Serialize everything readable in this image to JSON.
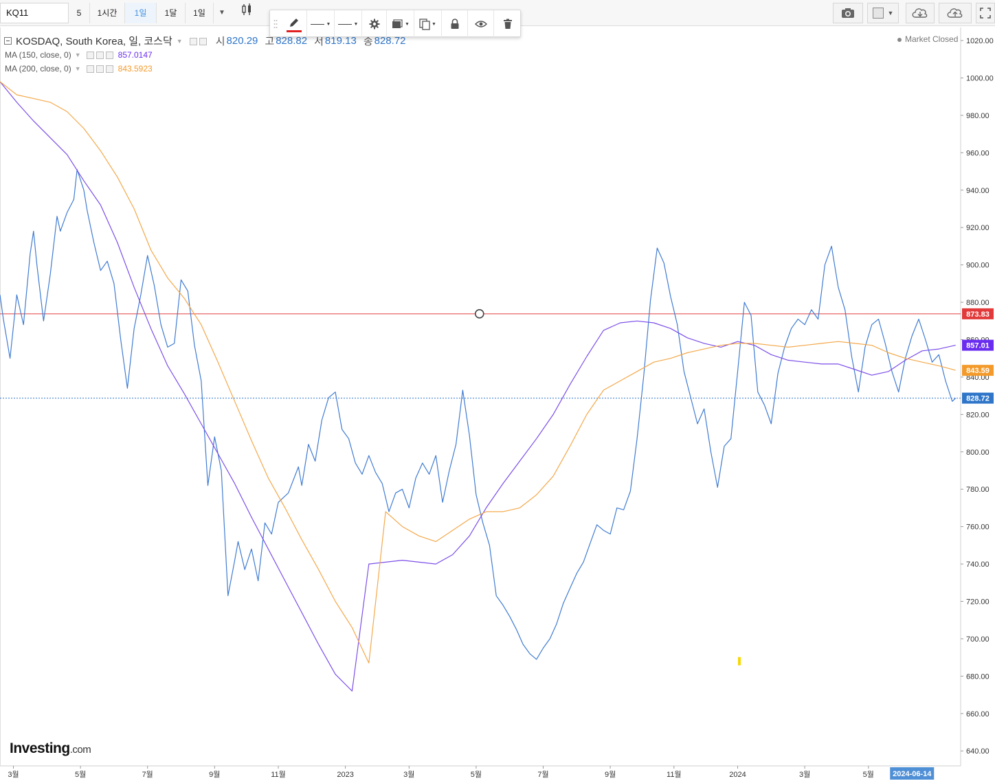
{
  "toolbar": {
    "symbol": "KQ11",
    "timeframes": [
      {
        "label": "5",
        "active": false
      },
      {
        "label": "1시간",
        "active": false
      },
      {
        "label": "1일",
        "active": true
      },
      {
        "label": "1달",
        "active": false
      },
      {
        "label": "1일",
        "active": false
      }
    ],
    "dropdown_icon": "caret-down-icon",
    "chart_type_icon": "candlestick-icon",
    "right_icons": [
      "camera-icon",
      "color-box-icon",
      "cloud-download-icon",
      "cloud-upload-icon",
      "fullscreen-icon"
    ]
  },
  "drawing_toolbar": {
    "icons": [
      "drag-handle-icon",
      "pencil-icon",
      "line-style-icon",
      "line-width-icon",
      "gear-icon",
      "fill-icon",
      "copy-icon",
      "lock-icon",
      "eye-icon",
      "trash-icon"
    ],
    "pencil_color": "#e02020"
  },
  "legend": {
    "title": "KOSDAQ, South Korea, 일, 코스닥",
    "open_label": "시",
    "open": "820.29",
    "high_label": "고",
    "high": "828.82",
    "low_label": "서",
    "low": "819.13",
    "close_label": "송",
    "close": "828.72",
    "ma150_label": "MA (150, close, 0)",
    "ma150_value": "857.0147",
    "ma200_label": "MA (200, close, 0)",
    "ma200_value": "843.5923",
    "market_status": "Market Closed"
  },
  "watermark": {
    "brand": "Investing",
    "suffix": ".com"
  },
  "chart_data": {
    "type": "line",
    "title": "KOSDAQ, South Korea, 일, 코스닥",
    "xlabel": "",
    "ylabel": "",
    "ylim": [
      632,
      1027
    ],
    "yticks": [
      640,
      660,
      680,
      700,
      720,
      740,
      760,
      780,
      800,
      820,
      840,
      860,
      880,
      900,
      920,
      940,
      960,
      980,
      1000,
      1020
    ],
    "xlim": [
      0,
      28.65
    ],
    "xticks": [
      {
        "t": 0.4,
        "label": "3월"
      },
      {
        "t": 2.4,
        "label": "5월"
      },
      {
        "t": 4.4,
        "label": "7월"
      },
      {
        "t": 6.4,
        "label": "9월"
      },
      {
        "t": 8.3,
        "label": "11월"
      },
      {
        "t": 10.3,
        "label": "2023"
      },
      {
        "t": 12.2,
        "label": "3월"
      },
      {
        "t": 14.2,
        "label": "5월"
      },
      {
        "t": 16.2,
        "label": "7월"
      },
      {
        "t": 18.2,
        "label": "9월"
      },
      {
        "t": 20.1,
        "label": "11월"
      },
      {
        "t": 22.0,
        "label": "2024"
      },
      {
        "t": 24.0,
        "label": "3월"
      },
      {
        "t": 25.9,
        "label": "5월"
      }
    ],
    "x_cursor_label": {
      "t": 27.2,
      "label": "2024-06-14"
    },
    "grid": false,
    "series": [
      {
        "name": "KOSDAQ",
        "color": "#3f7bd1",
        "width": 1.2,
        "points": [
          [
            0,
            884
          ],
          [
            0.1,
            871
          ],
          [
            0.3,
            850
          ],
          [
            0.5,
            884
          ],
          [
            0.7,
            868
          ],
          [
            0.9,
            906
          ],
          [
            1.0,
            918
          ],
          [
            1.1,
            900
          ],
          [
            1.3,
            870
          ],
          [
            1.5,
            895
          ],
          [
            1.7,
            926
          ],
          [
            1.8,
            918
          ],
          [
            2.0,
            928
          ],
          [
            2.2,
            935
          ],
          [
            2.3,
            951
          ],
          [
            2.5,
            940
          ],
          [
            2.6,
            929
          ],
          [
            2.8,
            912
          ],
          [
            3.0,
            897
          ],
          [
            3.2,
            902
          ],
          [
            3.4,
            890
          ],
          [
            3.6,
            860
          ],
          [
            3.8,
            834
          ],
          [
            4.0,
            866
          ],
          [
            4.2,
            884
          ],
          [
            4.4,
            905
          ],
          [
            4.5,
            897
          ],
          [
            4.6,
            889
          ],
          [
            4.8,
            868
          ],
          [
            5.0,
            856
          ],
          [
            5.2,
            858
          ],
          [
            5.4,
            892
          ],
          [
            5.6,
            886
          ],
          [
            5.8,
            857
          ],
          [
            6.0,
            838
          ],
          [
            6.2,
            782
          ],
          [
            6.4,
            808
          ],
          [
            6.6,
            790
          ],
          [
            6.8,
            723
          ],
          [
            7.0,
            742
          ],
          [
            7.1,
            752
          ],
          [
            7.3,
            737
          ],
          [
            7.5,
            748
          ],
          [
            7.7,
            731
          ],
          [
            7.9,
            762
          ],
          [
            8.1,
            756
          ],
          [
            8.3,
            773
          ],
          [
            8.6,
            778
          ],
          [
            8.9,
            792
          ],
          [
            9.0,
            782
          ],
          [
            9.2,
            804
          ],
          [
            9.4,
            795
          ],
          [
            9.6,
            817
          ],
          [
            9.8,
            829
          ],
          [
            10.0,
            832
          ],
          [
            10.2,
            812
          ],
          [
            10.4,
            807
          ],
          [
            10.6,
            794
          ],
          [
            10.8,
            788
          ],
          [
            11.0,
            798
          ],
          [
            11.2,
            789
          ],
          [
            11.4,
            783
          ],
          [
            11.6,
            768
          ],
          [
            11.8,
            778
          ],
          [
            12.0,
            780
          ],
          [
            12.2,
            770
          ],
          [
            12.4,
            786
          ],
          [
            12.6,
            794
          ],
          [
            12.8,
            788
          ],
          [
            13.0,
            798
          ],
          [
            13.2,
            773
          ],
          [
            13.4,
            790
          ],
          [
            13.6,
            804
          ],
          [
            13.8,
            833
          ],
          [
            14.0,
            809
          ],
          [
            14.2,
            777
          ],
          [
            14.4,
            762
          ],
          [
            14.6,
            750
          ],
          [
            14.8,
            723
          ],
          [
            15.0,
            718
          ],
          [
            15.2,
            712
          ],
          [
            15.4,
            705
          ],
          [
            15.6,
            697
          ],
          [
            15.8,
            692
          ],
          [
            16.0,
            689
          ],
          [
            16.2,
            695
          ],
          [
            16.4,
            700
          ],
          [
            16.6,
            708
          ],
          [
            16.8,
            719
          ],
          [
            17.0,
            727
          ],
          [
            17.2,
            735
          ],
          [
            17.4,
            741
          ],
          [
            17.6,
            751
          ],
          [
            17.8,
            761
          ],
          [
            18.0,
            758
          ],
          [
            18.2,
            756
          ],
          [
            18.4,
            770
          ],
          [
            18.6,
            769
          ],
          [
            18.8,
            779
          ],
          [
            19.0,
            807
          ],
          [
            19.2,
            841
          ],
          [
            19.4,
            881
          ],
          [
            19.6,
            909
          ],
          [
            19.8,
            901
          ],
          [
            20.0,
            883
          ],
          [
            20.2,
            868
          ],
          [
            20.4,
            843
          ],
          [
            20.6,
            829
          ],
          [
            20.8,
            815
          ],
          [
            21.0,
            823
          ],
          [
            21.2,
            800
          ],
          [
            21.4,
            781
          ],
          [
            21.6,
            803
          ],
          [
            21.8,
            807
          ],
          [
            22.0,
            843
          ],
          [
            22.2,
            880
          ],
          [
            22.4,
            873
          ],
          [
            22.6,
            832
          ],
          [
            22.8,
            825
          ],
          [
            23.0,
            815
          ],
          [
            23.2,
            842
          ],
          [
            23.4,
            856
          ],
          [
            23.6,
            866
          ],
          [
            23.8,
            871
          ],
          [
            24.0,
            868
          ],
          [
            24.2,
            876
          ],
          [
            24.4,
            871
          ],
          [
            24.6,
            900
          ],
          [
            24.8,
            910
          ],
          [
            25.0,
            888
          ],
          [
            25.2,
            876
          ],
          [
            25.4,
            851
          ],
          [
            25.6,
            832
          ],
          [
            25.8,
            856
          ],
          [
            26.0,
            868
          ],
          [
            26.2,
            871
          ],
          [
            26.4,
            858
          ],
          [
            26.6,
            843
          ],
          [
            26.8,
            832
          ],
          [
            27.0,
            850
          ],
          [
            27.2,
            862
          ],
          [
            27.4,
            871
          ],
          [
            27.6,
            860
          ],
          [
            27.8,
            848
          ],
          [
            28.0,
            852
          ],
          [
            28.2,
            838
          ],
          [
            28.4,
            827
          ],
          [
            28.5,
            828.72
          ]
        ]
      },
      {
        "name": "MA (150, close, 0)",
        "color": "#7b4ee8",
        "width": 1.2,
        "points": [
          [
            0,
            998
          ],
          [
            0.5,
            987
          ],
          [
            1.0,
            977
          ],
          [
            1.5,
            968
          ],
          [
            2.0,
            959
          ],
          [
            2.5,
            945
          ],
          [
            3.0,
            932
          ],
          [
            3.5,
            912
          ],
          [
            4.0,
            888
          ],
          [
            4.5,
            866
          ],
          [
            5.0,
            846
          ],
          [
            5.5,
            831
          ],
          [
            6.0,
            815
          ],
          [
            6.5,
            799
          ],
          [
            7.0,
            783
          ],
          [
            7.5,
            765
          ],
          [
            8.0,
            748
          ],
          [
            8.5,
            731
          ],
          [
            9.0,
            714
          ],
          [
            9.5,
            697
          ],
          [
            10.0,
            681
          ],
          [
            10.5,
            672
          ],
          [
            11.0,
            740
          ],
          [
            11.5,
            741
          ],
          [
            12.0,
            742
          ],
          [
            12.5,
            741
          ],
          [
            13.0,
            740
          ],
          [
            13.5,
            745
          ],
          [
            14.0,
            755
          ],
          [
            14.5,
            770
          ],
          [
            15.0,
            783
          ],
          [
            15.5,
            795
          ],
          [
            16.0,
            807
          ],
          [
            16.5,
            820
          ],
          [
            17.0,
            836
          ],
          [
            17.5,
            851
          ],
          [
            18.0,
            865
          ],
          [
            18.5,
            869
          ],
          [
            19.0,
            870
          ],
          [
            19.5,
            869
          ],
          [
            20.0,
            866
          ],
          [
            20.5,
            861
          ],
          [
            21.0,
            858
          ],
          [
            21.5,
            856
          ],
          [
            22.0,
            859
          ],
          [
            22.5,
            857
          ],
          [
            23.0,
            852
          ],
          [
            23.5,
            849
          ],
          [
            24.0,
            848
          ],
          [
            24.5,
            847
          ],
          [
            25.0,
            847
          ],
          [
            25.5,
            844
          ],
          [
            26.0,
            841
          ],
          [
            26.5,
            843
          ],
          [
            27.0,
            849
          ],
          [
            27.5,
            854
          ],
          [
            28.0,
            855
          ],
          [
            28.5,
            857.0147
          ]
        ]
      },
      {
        "name": "MA (200, close, 0)",
        "color": "#f3a84a",
        "width": 1.2,
        "points": [
          [
            0,
            998
          ],
          [
            0.5,
            991
          ],
          [
            1.0,
            989
          ],
          [
            1.5,
            987
          ],
          [
            2.0,
            982
          ],
          [
            2.5,
            973
          ],
          [
            3.0,
            961
          ],
          [
            3.5,
            947
          ],
          [
            4.0,
            930
          ],
          [
            4.5,
            908
          ],
          [
            5.0,
            893
          ],
          [
            5.5,
            882
          ],
          [
            6.0,
            868
          ],
          [
            6.5,
            848
          ],
          [
            7.0,
            827
          ],
          [
            7.5,
            806
          ],
          [
            8.0,
            786
          ],
          [
            8.5,
            770
          ],
          [
            9.0,
            753
          ],
          [
            9.5,
            737
          ],
          [
            10.0,
            720
          ],
          [
            10.5,
            706
          ],
          [
            11.0,
            687
          ],
          [
            11.5,
            768
          ],
          [
            12.0,
            760
          ],
          [
            12.5,
            755
          ],
          [
            13.0,
            752
          ],
          [
            13.5,
            758
          ],
          [
            14.0,
            764
          ],
          [
            14.5,
            768
          ],
          [
            15.0,
            768
          ],
          [
            15.5,
            770
          ],
          [
            16.0,
            777
          ],
          [
            16.5,
            787
          ],
          [
            17.0,
            803
          ],
          [
            17.5,
            820
          ],
          [
            18.0,
            833
          ],
          [
            18.5,
            838
          ],
          [
            19.0,
            843
          ],
          [
            19.5,
            848
          ],
          [
            20.0,
            850
          ],
          [
            20.5,
            853
          ],
          [
            21.0,
            855
          ],
          [
            21.5,
            857
          ],
          [
            22.0,
            858
          ],
          [
            22.5,
            858
          ],
          [
            23.0,
            857
          ],
          [
            23.5,
            856
          ],
          [
            24.0,
            857
          ],
          [
            24.5,
            858
          ],
          [
            25.0,
            859
          ],
          [
            25.5,
            858
          ],
          [
            26.0,
            857
          ],
          [
            26.5,
            853
          ],
          [
            27.0,
            850
          ],
          [
            27.5,
            848
          ],
          [
            28.0,
            846
          ],
          [
            28.5,
            843.5923
          ]
        ]
      }
    ],
    "horizontal_lines": [
      {
        "value": 873.83,
        "label": "873.83",
        "color": "#e23a3a",
        "style": "solid"
      },
      {
        "value": 828.72,
        "label": "828.72",
        "color": "#2f76c9",
        "style": "dotted"
      }
    ],
    "price_labels": [
      {
        "value": 857.01,
        "label": "857.01",
        "color": "#6a2df0"
      },
      {
        "value": 843.59,
        "label": "843.59",
        "color": "#f39a2a"
      }
    ],
    "markers": [
      {
        "type": "circle",
        "t": 14.3,
        "value": 873.83
      },
      {
        "type": "tick",
        "t": 22.05,
        "value": 688,
        "color": "#f5d800"
      }
    ]
  }
}
